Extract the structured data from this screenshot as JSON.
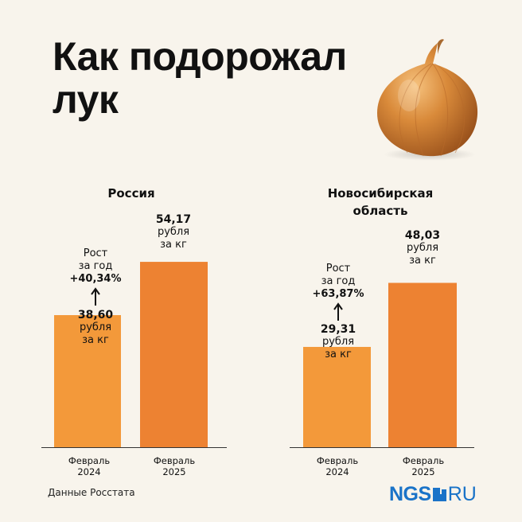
{
  "title_lines": [
    "Как подорожал",
    "лук"
  ],
  "source": "Данные Росстата",
  "logo": {
    "left": "NGS",
    "right": "RU",
    "color": "#1a73c8"
  },
  "colors": {
    "bar_2024": "#f3993a",
    "bar_2025": "#ed8232",
    "background": "#f8f4ec"
  },
  "chart_data": [
    {
      "type": "bar",
      "title": "Россия",
      "categories": [
        [
          "Февраль",
          "2024"
        ],
        [
          "Февраль",
          "2025"
        ]
      ],
      "values": [
        38.6,
        54.17
      ],
      "value_labels": [
        [
          "38,60",
          "рубля",
          "за кг"
        ],
        [
          "54,17",
          "рубля",
          "за кг"
        ]
      ],
      "growth": [
        "Рост",
        "за год",
        "+40,34%"
      ],
      "ylim": [
        0,
        60
      ],
      "xlabel": "",
      "ylabel": ""
    },
    {
      "type": "bar",
      "title": "Новосибирская область",
      "title_lines": [
        "Новосибирская",
        "область"
      ],
      "categories": [
        [
          "Февраль",
          "2024"
        ],
        [
          "Февраль",
          "2025"
        ]
      ],
      "values": [
        29.31,
        48.03
      ],
      "value_labels": [
        [
          "29,31",
          "рубля",
          "за кг"
        ],
        [
          "48,03",
          "рубля",
          "за кг"
        ]
      ],
      "growth": [
        "Рост",
        "за год",
        "+63,87%"
      ],
      "ylim": [
        0,
        60
      ],
      "xlabel": "",
      "ylabel": ""
    }
  ]
}
